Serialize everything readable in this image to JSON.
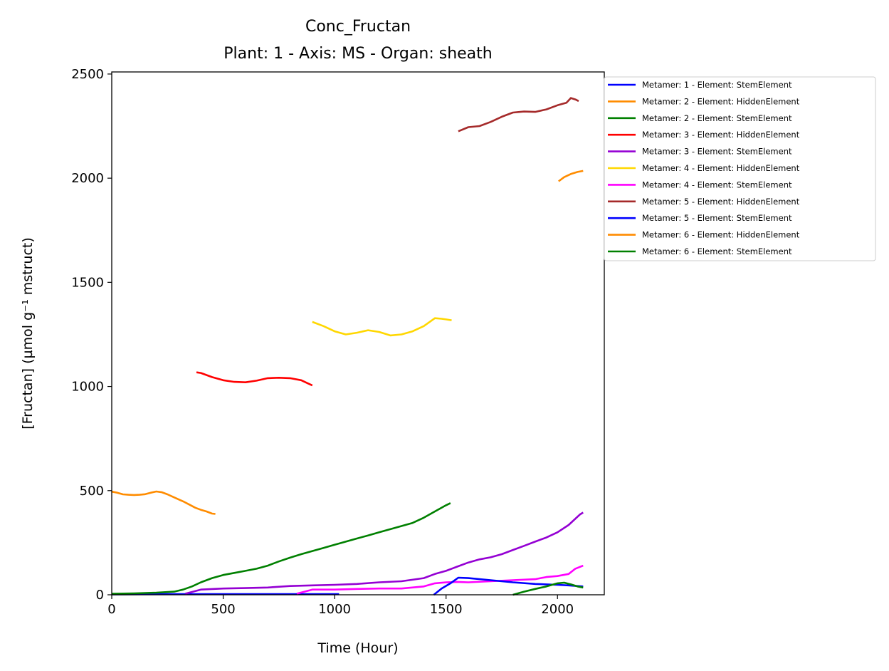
{
  "chart_data": {
    "type": "line",
    "title": "Conc_Fructan",
    "subtitle": "Plant: 1 - Axis: MS - Organ: sheath",
    "xlabel": "Time (Hour)",
    "ylabel": "[Fructan] (µmol g⁻¹ mstruct)",
    "xlim": [
      0,
      2210
    ],
    "ylim": [
      0,
      2510
    ],
    "xticks": [
      0,
      500,
      1000,
      1500,
      2000
    ],
    "yticks": [
      0,
      500,
      1000,
      1500,
      2000,
      2500
    ],
    "grid": false,
    "legend_position": "outside-right",
    "series": [
      {
        "name": "Metamer: 1 - Element: StemElement",
        "color": "#0000ff",
        "x": [
          0,
          200,
          400,
          600,
          800,
          1000,
          1020
        ],
        "y": [
          2,
          3,
          3,
          3,
          3,
          3,
          3
        ]
      },
      {
        "name": "Metamer: 2 - Element: HiddenElement",
        "color": "#ff8c00",
        "x": [
          0,
          25,
          50,
          75,
          100,
          125,
          150,
          175,
          200,
          225,
          250,
          275,
          300,
          325,
          350,
          375,
          400,
          425,
          450,
          465
        ],
        "y": [
          495,
          490,
          482,
          480,
          479,
          480,
          483,
          490,
          496,
          492,
          482,
          470,
          458,
          446,
          432,
          418,
          408,
          400,
          390,
          388
        ]
      },
      {
        "name": "Metamer: 2 - Element: StemElement",
        "color": "#008000",
        "x": [
          0,
          100,
          200,
          280,
          320,
          360,
          400,
          450,
          500,
          550,
          600,
          650,
          700,
          750,
          800,
          850,
          900,
          950,
          1000,
          1050,
          1100,
          1150,
          1200,
          1250,
          1300,
          1350,
          1400,
          1450,
          1500,
          1520
        ],
        "y": [
          5,
          7,
          10,
          15,
          25,
          40,
          60,
          80,
          95,
          105,
          115,
          125,
          140,
          160,
          178,
          195,
          210,
          225,
          240,
          255,
          270,
          285,
          300,
          315,
          330,
          345,
          370,
          400,
          430,
          440
        ]
      },
      {
        "name": "Metamer: 3 - Element: HiddenElement",
        "color": "#ff0000",
        "x": [
          380,
          400,
          450,
          500,
          550,
          600,
          650,
          700,
          750,
          800,
          850,
          880,
          900
        ],
        "y": [
          1068,
          1065,
          1045,
          1030,
          1022,
          1020,
          1028,
          1040,
          1042,
          1040,
          1030,
          1015,
          1005
        ]
      },
      {
        "name": "Metamer: 3 - Element: StemElement",
        "color": "#9400d3",
        "x": [
          330,
          400,
          500,
          600,
          700,
          800,
          900,
          1000,
          1100,
          1200,
          1300,
          1400,
          1450,
          1500,
          1550,
          1600,
          1650,
          1700,
          1750,
          1800,
          1850,
          1900,
          1950,
          2000,
          2050,
          2100,
          2115
        ],
        "y": [
          5,
          25,
          30,
          32,
          35,
          42,
          45,
          48,
          52,
          60,
          65,
          80,
          100,
          115,
          135,
          155,
          170,
          180,
          195,
          215,
          235,
          255,
          275,
          300,
          335,
          385,
          395
        ]
      },
      {
        "name": "Metamer: 4 - Element: HiddenElement",
        "color": "#ffd700",
        "x": [
          900,
          950,
          1000,
          1050,
          1100,
          1150,
          1200,
          1250,
          1300,
          1350,
          1400,
          1450,
          1480,
          1500,
          1525
        ],
        "y": [
          1310,
          1290,
          1265,
          1250,
          1258,
          1270,
          1262,
          1245,
          1250,
          1265,
          1290,
          1328,
          1325,
          1322,
          1318
        ]
      },
      {
        "name": "Metamer: 4 - Element: StemElement",
        "color": "#ff00ff",
        "x": [
          830,
          900,
          1000,
          1100,
          1200,
          1300,
          1400,
          1450,
          1500,
          1550,
          1600,
          1700,
          1800,
          1900,
          1950,
          2000,
          2050,
          2080,
          2115
        ],
        "y": [
          5,
          25,
          25,
          28,
          30,
          30,
          40,
          55,
          60,
          62,
          60,
          65,
          70,
          75,
          85,
          90,
          100,
          125,
          140
        ]
      },
      {
        "name": "Metamer: 5 - Element: HiddenElement",
        "color": "#a52a2a",
        "x": [
          1555,
          1600,
          1650,
          1700,
          1750,
          1800,
          1850,
          1900,
          1950,
          2000,
          2040,
          2060,
          2080,
          2095
        ],
        "y": [
          2225,
          2245,
          2250,
          2270,
          2295,
          2315,
          2320,
          2318,
          2330,
          2350,
          2362,
          2385,
          2378,
          2370
        ]
      },
      {
        "name": "Metamer: 5 - Element: StemElement",
        "color": "#0000ff",
        "x": [
          1445,
          1480,
          1520,
          1555,
          1600,
          1700,
          1800,
          1900,
          2000,
          2050,
          2115
        ],
        "y": [
          0,
          30,
          55,
          82,
          80,
          70,
          60,
          52,
          48,
          45,
          40
        ]
      },
      {
        "name": "Metamer: 6 - Element: HiddenElement",
        "color": "#ff8c00",
        "x": [
          2005,
          2030,
          2060,
          2090,
          2115
        ],
        "y": [
          1985,
          2005,
          2020,
          2030,
          2035
        ]
      },
      {
        "name": "Metamer: 6 - Element: StemElement",
        "color": "#008000",
        "x": [
          1800,
          1850,
          1900,
          1950,
          2000,
          2030,
          2060,
          2090,
          2115
        ],
        "y": [
          0,
          15,
          28,
          40,
          55,
          58,
          50,
          40,
          35
        ]
      }
    ]
  }
}
